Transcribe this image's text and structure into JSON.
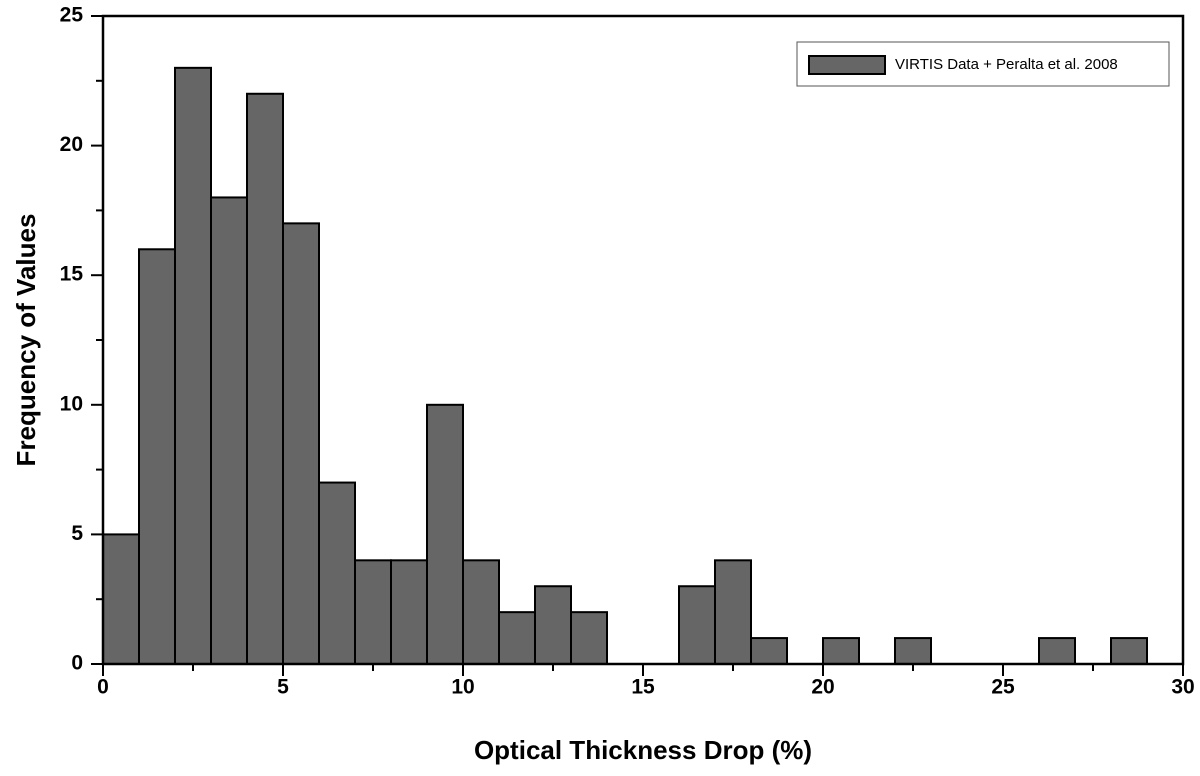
{
  "chart_data": {
    "type": "histogram",
    "xlabel": "Optical Thickness Drop (%)",
    "ylabel": "Frequency of Values",
    "bins": [
      0,
      1,
      2,
      3,
      4,
      5,
      6,
      7,
      8,
      9,
      10,
      11,
      12,
      13,
      14,
      15,
      16,
      17,
      18,
      19,
      20,
      21,
      22,
      23,
      24,
      25,
      26,
      27,
      28,
      29
    ],
    "series": [
      {
        "name": "VIRTIS Data + Peralta et al. 2008",
        "color": "#666666",
        "values": [
          5,
          16,
          23,
          18,
          22,
          17,
          7,
          4,
          4,
          10,
          4,
          2,
          3,
          2,
          0,
          0,
          3,
          4,
          1,
          0,
          1,
          0,
          1,
          0,
          0,
          0,
          1,
          0,
          1
        ]
      }
    ],
    "xlim": [
      0,
      30
    ],
    "xticks": [
      0,
      5,
      10,
      15,
      20,
      25,
      30
    ],
    "xminorticks": [
      2.5,
      7.5,
      12.5,
      17.5,
      22.5,
      27.5
    ],
    "ylim": [
      0,
      25
    ],
    "yticks": [
      0,
      5,
      10,
      15,
      20,
      25
    ],
    "yminorticks": [
      2.5,
      7.5,
      12.5,
      17.5,
      22.5
    ],
    "legend": "top-right",
    "grid": false
  }
}
